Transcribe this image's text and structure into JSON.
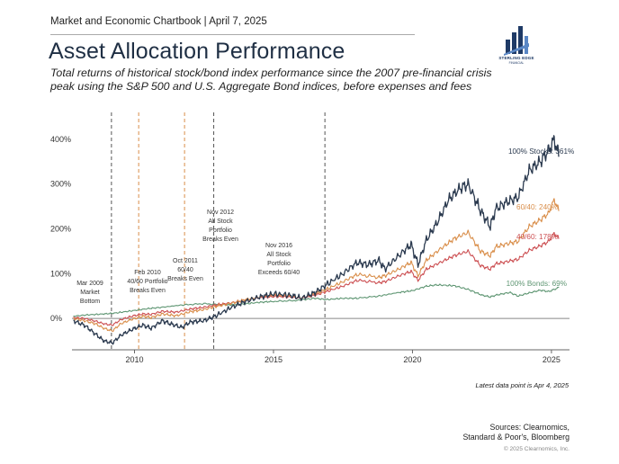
{
  "header": {
    "kicker": "Market and Economic Chartbook | April 7, 2025",
    "title": "Asset Allocation Performance",
    "subtitle": "Total returns of historical stock/bond index performance since the 2007 pre-financial crisis peak using the S&P 500 and U.S. Aggregate Bond indices, before expenses and fees"
  },
  "logo": {
    "name": "STERLING EDGE",
    "sub": "FINANCIAL",
    "color": "#1f3a66"
  },
  "footer": {
    "latest": "Latest data point is Apr 4, 2025",
    "sources": "Sources: Clearnomics, Standard & Poor's, Bloomberg",
    "copyright": "© 2025 Clearnomics, Inc."
  },
  "chart_data": {
    "type": "line",
    "xlabel": "",
    "ylabel": "",
    "xlim": [
      2007.75,
      2025.65
    ],
    "ylim": [
      -70,
      460
    ],
    "y_ticks": [
      0,
      100,
      200,
      300,
      400
    ],
    "y_tick_labels": [
      "0%",
      "100%",
      "200%",
      "300%",
      "400%"
    ],
    "x_ticks": [
      2010,
      2015,
      2020,
      2025
    ],
    "x_tick_labels": [
      "2010",
      "2015",
      "2020",
      "2025"
    ],
    "grid": false,
    "legend": "end-of-line labels",
    "colors": {
      "stocks": "#2b3a4f",
      "s6040": "#d98e4a",
      "s4060": "#cc4f52",
      "bonds": "#5f9673",
      "events": "#555555"
    },
    "series": [
      {
        "key": "stocks",
        "end_label": "100% Stocks: 361%",
        "x": [
          2007.8,
          2008.2,
          2008.6,
          2008.9,
          2009.2,
          2009.5,
          2009.9,
          2010.3,
          2010.6,
          2011.0,
          2011.3,
          2011.7,
          2012.0,
          2012.5,
          2012.9,
          2013.5,
          2014.0,
          2014.5,
          2015.0,
          2015.6,
          2016.0,
          2016.5,
          2016.9,
          2017.5,
          2018.0,
          2018.4,
          2018.8,
          2019.0,
          2019.5,
          2019.95,
          2020.2,
          2020.5,
          2020.9,
          2021.3,
          2021.7,
          2022.0,
          2022.45,
          2022.8,
          2023.0,
          2023.4,
          2023.8,
          2024.2,
          2024.6,
          2024.9,
          2025.1,
          2025.27
        ],
        "y": [
          -5,
          -15,
          -35,
          -50,
          -55,
          -38,
          -25,
          -15,
          -22,
          -5,
          -12,
          -20,
          -8,
          -5,
          5,
          25,
          38,
          48,
          55,
          52,
          45,
          58,
          75,
          100,
          125,
          120,
          130,
          110,
          140,
          165,
          120,
          175,
          215,
          265,
          290,
          300,
          240,
          205,
          245,
          260,
          270,
          330,
          350,
          375,
          400,
          361
        ]
      },
      {
        "key": "s6040",
        "end_label": "60/40: 240%",
        "x": [
          2007.8,
          2008.2,
          2008.6,
          2008.9,
          2009.2,
          2009.5,
          2009.9,
          2010.3,
          2010.6,
          2011.0,
          2011.5,
          2012.0,
          2012.5,
          2013.0,
          2013.5,
          2014.0,
          2014.5,
          2015.0,
          2015.6,
          2016.0,
          2016.5,
          2016.9,
          2017.5,
          2018.0,
          2018.8,
          2019.0,
          2019.5,
          2019.95,
          2020.2,
          2020.5,
          2021.0,
          2021.5,
          2022.0,
          2022.45,
          2022.8,
          2023.0,
          2023.5,
          2023.8,
          2024.2,
          2024.6,
          2024.9,
          2025.1,
          2025.27
        ],
        "y": [
          0,
          -5,
          -12,
          -22,
          -28,
          -12,
          -2,
          5,
          2,
          10,
          6,
          15,
          20,
          28,
          34,
          42,
          48,
          52,
          50,
          46,
          55,
          65,
          82,
          98,
          92,
          95,
          110,
          125,
          95,
          130,
          155,
          178,
          192,
          150,
          140,
          160,
          168,
          172,
          205,
          220,
          235,
          265,
          240
        ]
      },
      {
        "key": "s4060",
        "end_label": "40/60: 178%",
        "x": [
          2007.8,
          2008.2,
          2008.6,
          2008.9,
          2009.2,
          2009.5,
          2009.9,
          2010.3,
          2010.6,
          2011.0,
          2011.5,
          2012.0,
          2012.5,
          2013.0,
          2013.5,
          2014.0,
          2014.5,
          2015.0,
          2015.6,
          2016.0,
          2016.5,
          2016.9,
          2017.5,
          2018.0,
          2018.8,
          2019.0,
          2019.5,
          2019.95,
          2020.2,
          2020.5,
          2021.0,
          2021.5,
          2022.0,
          2022.45,
          2022.8,
          2023.0,
          2023.5,
          2023.8,
          2024.2,
          2024.6,
          2024.9,
          2025.1,
          2025.27
        ],
        "y": [
          2,
          0,
          -6,
          -12,
          -15,
          -3,
          5,
          10,
          9,
          16,
          14,
          21,
          25,
          31,
          35,
          42,
          46,
          49,
          48,
          45,
          52,
          60,
          72,
          85,
          80,
          82,
          95,
          105,
          85,
          110,
          125,
          140,
          150,
          118,
          110,
          122,
          128,
          132,
          152,
          162,
          172,
          190,
          178
        ]
      },
      {
        "key": "bonds",
        "end_label": "100% Bonds: 69%",
        "x": [
          2007.8,
          2008.3,
          2008.9,
          2009.3,
          2009.9,
          2010.5,
          2011.0,
          2011.7,
          2012.5,
          2013.3,
          2013.9,
          2014.5,
          2015.0,
          2015.8,
          2016.5,
          2016.9,
          2017.5,
          2018.0,
          2018.8,
          2019.5,
          2020.0,
          2020.5,
          2020.9,
          2021.5,
          2022.0,
          2022.5,
          2022.8,
          2023.0,
          2023.5,
          2023.8,
          2024.2,
          2024.6,
          2024.9,
          2025.27
        ],
        "y": [
          5,
          8,
          10,
          12,
          17,
          22,
          25,
          30,
          33,
          30,
          32,
          36,
          38,
          40,
          45,
          42,
          45,
          45,
          50,
          58,
          62,
          72,
          75,
          73,
          65,
          52,
          48,
          52,
          58,
          50,
          57,
          63,
          60,
          69
        ]
      }
    ],
    "events": [
      {
        "x": 2009.17,
        "label": [
          "Mar 2009",
          "Market",
          "Bottom"
        ]
      },
      {
        "x": 2010.15,
        "label": [
          "Feb 2010",
          "40/60 Portfolio",
          "Breaks Even"
        ]
      },
      {
        "x": 2011.8,
        "label": [
          "Oct 2011",
          "60/40",
          "Breaks Even"
        ]
      },
      {
        "x": 2012.85,
        "label": [
          "Nov 2012",
          "All Stock",
          "Portfolio",
          "Breaks Even"
        ]
      },
      {
        "x": 2016.85,
        "label": [
          "Nov 2016",
          "All Stock",
          "Portfolio",
          "Exceeds 60/40"
        ]
      }
    ]
  }
}
